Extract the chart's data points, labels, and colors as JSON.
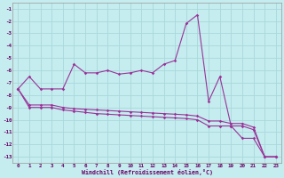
{
  "background_color": "#c5ecee",
  "grid_color": "#a8d8dc",
  "line_color": "#993399",
  "xlabel": "Windchill (Refroidissement éolien,°C)",
  "hours": [
    0,
    1,
    2,
    3,
    4,
    5,
    6,
    7,
    8,
    9,
    10,
    11,
    12,
    13,
    14,
    15,
    16,
    17,
    18,
    19,
    20,
    21,
    22,
    23
  ],
  "series1": [
    -7.5,
    -6.5,
    -7.5,
    -7.5,
    -7.5,
    -5.5,
    -6.2,
    -6.2,
    -6.0,
    -6.3,
    -6.2,
    -6.0,
    -6.2,
    -5.5,
    -5.2,
    -2.2,
    -1.5,
    -8.5,
    -6.5,
    -10.5,
    -11.5,
    -11.5,
    -13.0,
    -13.0
  ],
  "series2": [
    -7.5,
    -9.0,
    -9.0,
    -9.0,
    -9.2,
    -9.3,
    -9.4,
    -9.5,
    -9.55,
    -9.6,
    -9.65,
    -9.7,
    -9.75,
    -9.8,
    -9.85,
    -9.9,
    -10.0,
    -10.5,
    -10.5,
    -10.5,
    -10.5,
    -10.8,
    -13.0,
    -13.0
  ],
  "series3": [
    -7.5,
    -8.8,
    -8.8,
    -8.8,
    -9.0,
    -9.1,
    -9.15,
    -9.2,
    -9.25,
    -9.3,
    -9.35,
    -9.4,
    -9.45,
    -9.5,
    -9.55,
    -9.6,
    -9.7,
    -10.1,
    -10.1,
    -10.3,
    -10.3,
    -10.6,
    -13.0,
    -13.0
  ],
  "ylim": [
    -13.5,
    -0.5
  ],
  "yticks": [
    -13,
    -12,
    -11,
    -10,
    -9,
    -8,
    -7,
    -6,
    -5,
    -4,
    -3,
    -2,
    -1
  ],
  "xlim": [
    -0.5,
    23.5
  ],
  "xticks": [
    0,
    1,
    2,
    3,
    4,
    5,
    6,
    7,
    8,
    9,
    10,
    11,
    12,
    13,
    14,
    15,
    16,
    17,
    18,
    19,
    20,
    21,
    22,
    23
  ]
}
